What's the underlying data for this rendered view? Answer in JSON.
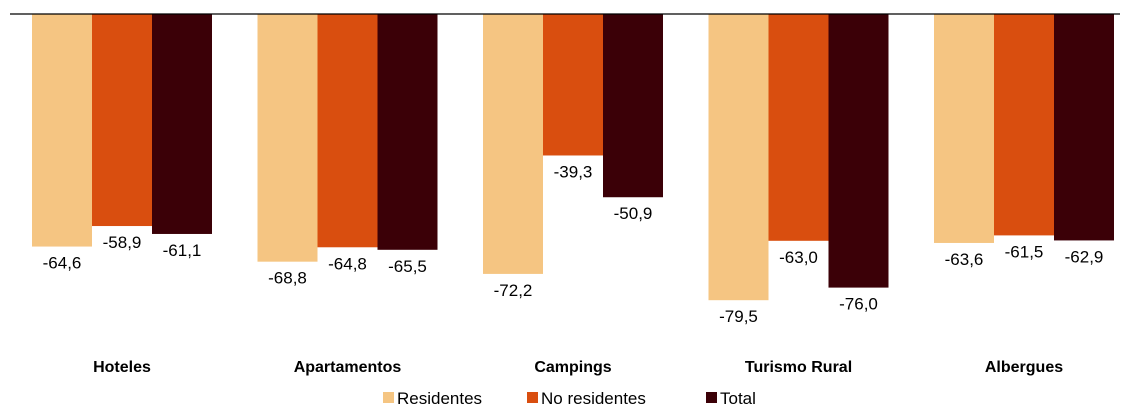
{
  "chart_data": {
    "type": "bar",
    "categories": [
      "Hoteles",
      "Apartamentos",
      "Campings",
      "Turismo Rural",
      "Albergues"
    ],
    "series": [
      {
        "name": "Residentes",
        "color": "#f5c582",
        "values": [
          -64.6,
          -68.8,
          -72.2,
          -79.5,
          -63.6
        ],
        "labels": [
          "-64,6",
          "-68,8",
          "-72,2",
          "-79,5",
          "-63,6"
        ]
      },
      {
        "name": "No residentes",
        "color": "#d94e0f",
        "values": [
          -58.9,
          -64.8,
          -39.3,
          -63.0,
          -61.5
        ],
        "labels": [
          "-58,9",
          "-64,8",
          "-39,3",
          "-63,0",
          "-61,5"
        ]
      },
      {
        "name": "Total",
        "color": "#3b0007",
        "values": [
          -61.1,
          -65.5,
          -50.9,
          -76.0,
          -62.9
        ],
        "labels": [
          "-61,1",
          "-65,5",
          "-50,9",
          "-76,0",
          "-62,9"
        ]
      }
    ],
    "ylim": [
      -80,
      0
    ],
    "legend": "bottom",
    "grid": false
  }
}
